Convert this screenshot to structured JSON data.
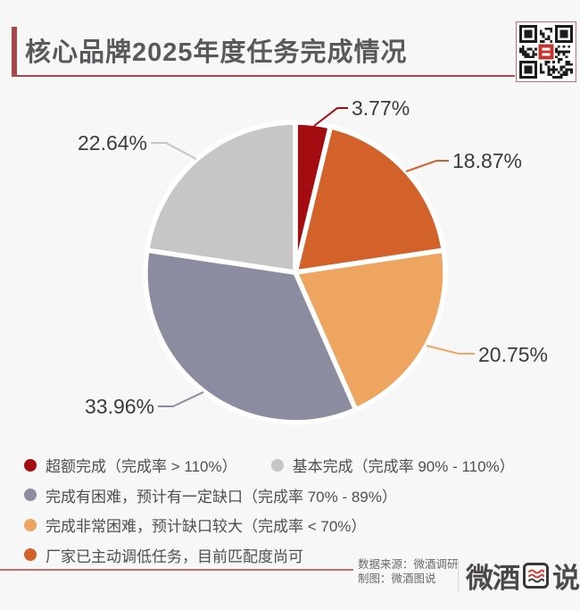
{
  "header": {
    "title": "核心品牌2025年度任务完成情况",
    "accent_color": "#a8474c"
  },
  "chart_data": {
    "type": "pie",
    "title": "核心品牌2025年度任务完成情况",
    "unit": "%",
    "direction": "clockwise",
    "start_angle": "12-oclock",
    "legend_position": "bottom-left",
    "slices": [
      {
        "category": "超额完成（完成率 > 110%）",
        "value": 3.77,
        "label": "3.77%",
        "color": "#a30d12"
      },
      {
        "category": "厂家已主动调低任务，目前匹配度尚可",
        "value": 18.87,
        "label": "18.87%",
        "color": "#d2612a"
      },
      {
        "category": "完成非常困难，预计缺口较大（完成率 < 70%）",
        "value": 20.75,
        "label": "20.75%",
        "color": "#eda55f"
      },
      {
        "category": "完成有困难，预计有一定缺口（完成率 70% - 89%）",
        "value": 33.96,
        "label": "33.96%",
        "color": "#8c8ca0"
      },
      {
        "category": "基本完成（完成率 90% - 110%）",
        "value": 22.64,
        "label": "22.64%",
        "color": "#c6c6c6"
      }
    ]
  },
  "legend": {
    "items": [
      {
        "text": "超额完成（完成率 > 110%）",
        "color": "#a30d12"
      },
      {
        "text": "基本完成（完成率 90% - 110%）",
        "color": "#c6c6c6"
      },
      {
        "text": "完成有困难，预计有一定缺口（完成率 70% - 89%）",
        "color": "#8c8ca0"
      },
      {
        "text": "完成非常困难，预计缺口较大（完成率 < 70%）",
        "color": "#eda55f"
      },
      {
        "text": "厂家已主动调低任务，目前匹配度尚可",
        "color": "#d2612a"
      }
    ]
  },
  "footer": {
    "source": "数据来源：微酒调研",
    "credit": "制图：微酒图说",
    "logo": {
      "prefix": "微酒",
      "boxed_char": "图",
      "suffix": "说"
    }
  }
}
